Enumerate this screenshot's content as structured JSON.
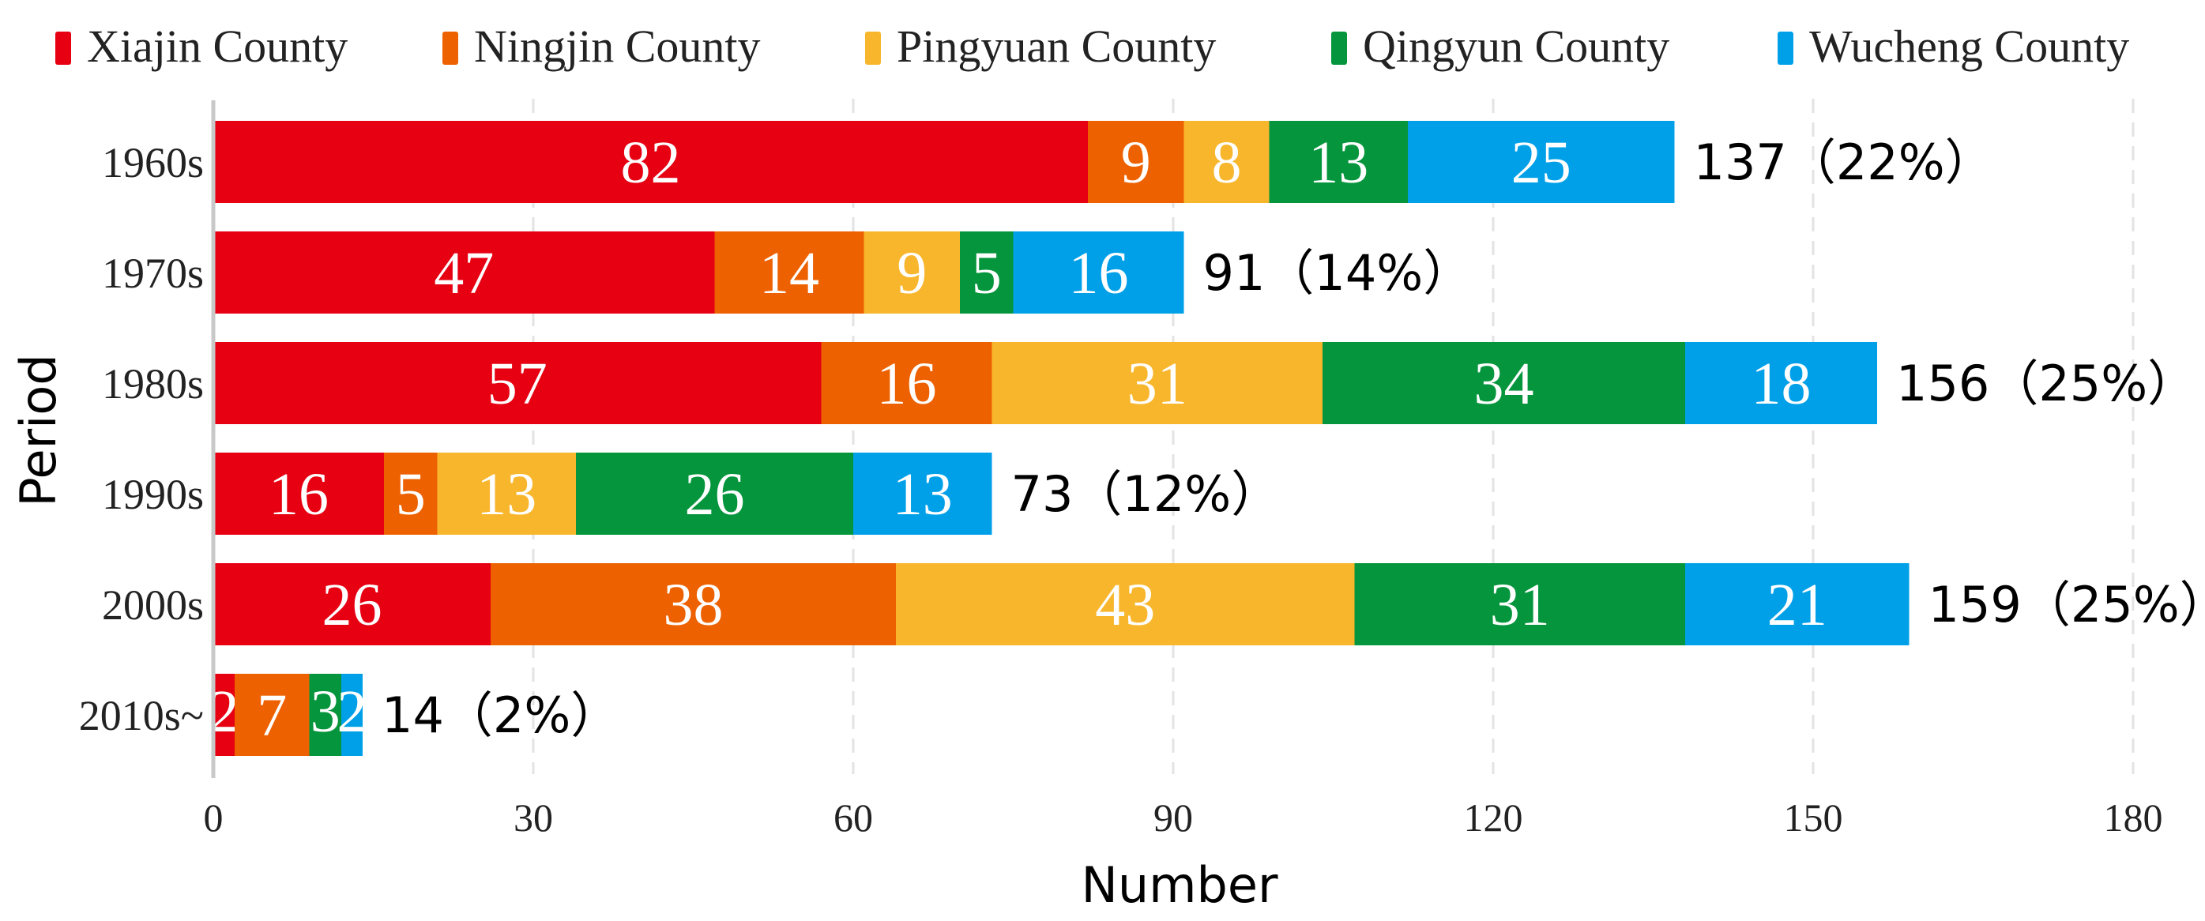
{
  "chart_data": {
    "type": "bar",
    "orientation": "horizontal",
    "stacked": true,
    "categories": [
      "1960s",
      "1970s",
      "1980s",
      "1990s",
      "2000s",
      "2010s~"
    ],
    "series": [
      {
        "name": "Xiajin County",
        "color": "#e60012",
        "values": [
          82,
          47,
          57,
          16,
          26,
          2
        ]
      },
      {
        "name": "Ningjin County",
        "color": "#ed6100",
        "values": [
          9,
          14,
          16,
          5,
          38,
          7
        ]
      },
      {
        "name": "Pingyuan County",
        "color": "#f8b62d",
        "values": [
          8,
          9,
          31,
          13,
          43,
          0
        ]
      },
      {
        "name": "Qingyun County",
        "color": "#05953c",
        "values": [
          13,
          5,
          34,
          26,
          31,
          3
        ]
      },
      {
        "name": "Wucheng County",
        "color": "#00a0e9",
        "values": [
          25,
          16,
          18,
          13,
          21,
          2
        ]
      }
    ],
    "totals": [
      "137（22%）",
      "91（14%）",
      "156（25%）",
      "73（12%）",
      "159（25%）",
      "14（2%）"
    ],
    "xlabel": "Number",
    "ylabel": "Period",
    "xlim": [
      0,
      180
    ],
    "xticks": [
      0,
      30,
      60,
      90,
      120,
      150,
      180
    ],
    "grid": "vertical-dashed",
    "legend": "top"
  }
}
